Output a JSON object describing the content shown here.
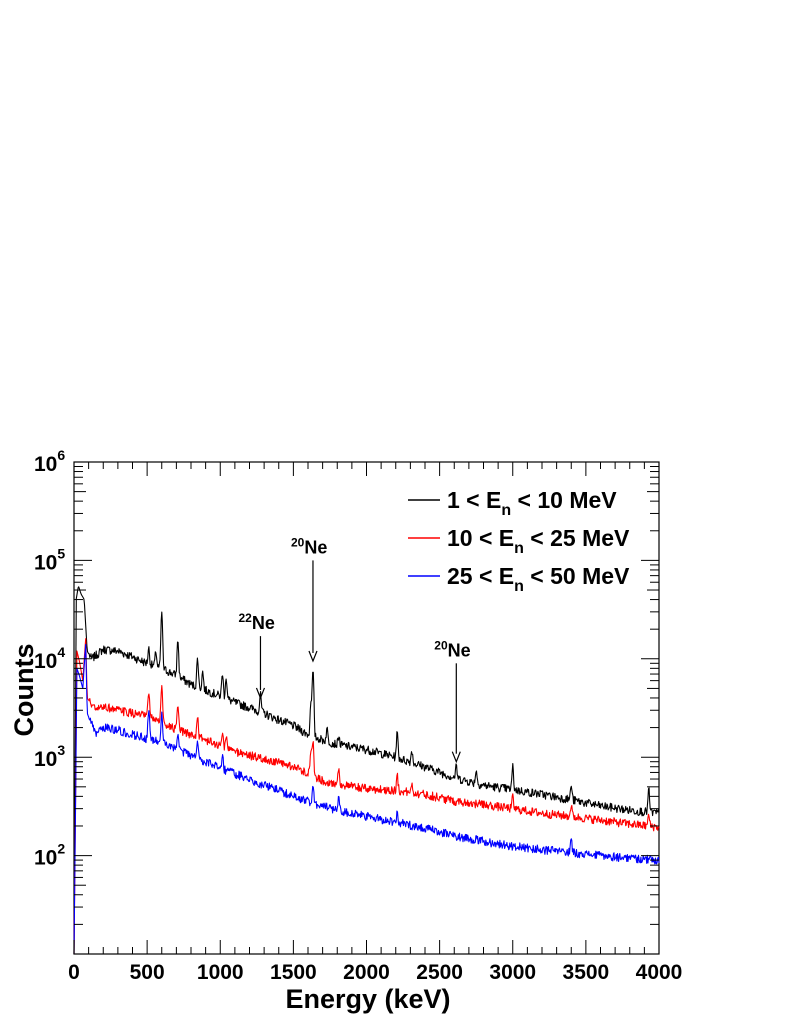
{
  "chart_data": {
    "type": "line",
    "xlabel": "Energy (keV)",
    "ylabel": "Counts",
    "xlim": [
      0,
      4000
    ],
    "ylim": [
      10,
      1000000
    ],
    "yscale": "log",
    "grid": false,
    "legend_position": "top-right",
    "x_ticks": [
      "0",
      "500",
      "1000",
      "1500",
      "2000",
      "2500",
      "3000",
      "3500",
      "4000"
    ],
    "y_ticks": [
      {
        "base": "10",
        "exp": "2",
        "value": 100
      },
      {
        "base": "10",
        "exp": "3",
        "value": 1000
      },
      {
        "base": "10",
        "exp": "4",
        "value": 10000
      },
      {
        "base": "10",
        "exp": "5",
        "value": 100000
      },
      {
        "base": "10",
        "exp": "6",
        "value": 1000000
      }
    ],
    "series": [
      {
        "label_parts": [
          "1 < E",
          "n",
          " < 10 MeV"
        ],
        "color": "#000000",
        "continuum": [
          [
            0,
            10
          ],
          [
            15,
            40000
          ],
          [
            30,
            55000
          ],
          [
            50,
            45000
          ],
          [
            70,
            40000
          ],
          [
            90,
            12000
          ],
          [
            120,
            10000
          ],
          [
            200,
            12500
          ],
          [
            300,
            12000
          ],
          [
            400,
            10500
          ],
          [
            500,
            9000
          ],
          [
            600,
            8000
          ],
          [
            700,
            6800
          ],
          [
            800,
            5500
          ],
          [
            900,
            4800
          ],
          [
            1000,
            4200
          ],
          [
            1100,
            3600
          ],
          [
            1200,
            3200
          ],
          [
            1300,
            2800
          ],
          [
            1400,
            2400
          ],
          [
            1500,
            2100
          ],
          [
            1600,
            1700
          ],
          [
            1700,
            1500
          ],
          [
            1800,
            1350
          ],
          [
            2000,
            1200
          ],
          [
            2200,
            1000
          ],
          [
            2400,
            800
          ],
          [
            2600,
            620
          ],
          [
            2800,
            520
          ],
          [
            3000,
            470
          ],
          [
            3200,
            420
          ],
          [
            3400,
            370
          ],
          [
            3600,
            320
          ],
          [
            3800,
            290
          ],
          [
            4000,
            270
          ]
        ],
        "peaks": [
          [
            511,
            4000
          ],
          [
            560,
            3500
          ],
          [
            600,
            22000
          ],
          [
            710,
            9000
          ],
          [
            845,
            5000
          ],
          [
            880,
            2500
          ],
          [
            1015,
            3000
          ],
          [
            1040,
            2500
          ],
          [
            1275,
            1500
          ],
          [
            1620,
            2000
          ],
          [
            1634,
            6000
          ],
          [
            1730,
            500
          ],
          [
            1810,
            300
          ],
          [
            2210,
            800
          ],
          [
            2310,
            300
          ],
          [
            2614,
            200
          ],
          [
            2750,
            200
          ],
          [
            3000,
            350
          ],
          [
            3400,
            150
          ],
          [
            3930,
            200
          ]
        ]
      },
      {
        "label_parts": [
          "10 < E",
          "n",
          " < 25 MeV"
        ],
        "color": "#ff0000",
        "continuum": [
          [
            0,
            10
          ],
          [
            20,
            12000
          ],
          [
            40,
            9000
          ],
          [
            60,
            6000
          ],
          [
            80,
            16000
          ],
          [
            90,
            4000
          ],
          [
            150,
            3000
          ],
          [
            200,
            3300
          ],
          [
            300,
            3000
          ],
          [
            400,
            2800
          ],
          [
            500,
            2600
          ],
          [
            600,
            2300
          ],
          [
            700,
            1900
          ],
          [
            800,
            1700
          ],
          [
            900,
            1500
          ],
          [
            1000,
            1300
          ],
          [
            1100,
            1150
          ],
          [
            1200,
            1050
          ],
          [
            1300,
            950
          ],
          [
            1400,
            880
          ],
          [
            1500,
            800
          ],
          [
            1600,
            700
          ],
          [
            1700,
            580
          ],
          [
            1800,
            530
          ],
          [
            2000,
            480
          ],
          [
            2200,
            460
          ],
          [
            2400,
            420
          ],
          [
            2600,
            360
          ],
          [
            2800,
            330
          ],
          [
            3000,
            300
          ],
          [
            3200,
            270
          ],
          [
            3400,
            250
          ],
          [
            3600,
            230
          ],
          [
            3800,
            210
          ],
          [
            4000,
            195
          ]
        ],
        "peaks": [
          [
            511,
            2000
          ],
          [
            600,
            3000
          ],
          [
            710,
            1500
          ],
          [
            845,
            1000
          ],
          [
            1015,
            500
          ],
          [
            1040,
            400
          ],
          [
            1620,
            500
          ],
          [
            1634,
            800
          ],
          [
            1810,
            250
          ],
          [
            2210,
            200
          ],
          [
            2310,
            100
          ],
          [
            3000,
            100
          ],
          [
            3400,
            80
          ],
          [
            3930,
            60
          ]
        ]
      },
      {
        "label_parts": [
          "25 < E",
          "n",
          " < 50 MeV"
        ],
        "color": "#0000ff",
        "continuum": [
          [
            0,
            10
          ],
          [
            20,
            8000
          ],
          [
            40,
            6500
          ],
          [
            60,
            5000
          ],
          [
            80,
            14000
          ],
          [
            90,
            2800
          ],
          [
            150,
            1700
          ],
          [
            200,
            2000
          ],
          [
            300,
            1900
          ],
          [
            400,
            1700
          ],
          [
            500,
            1550
          ],
          [
            600,
            1400
          ],
          [
            700,
            1200
          ],
          [
            800,
            1050
          ],
          [
            900,
            900
          ],
          [
            1000,
            780
          ],
          [
            1100,
            680
          ],
          [
            1200,
            600
          ],
          [
            1300,
            520
          ],
          [
            1400,
            460
          ],
          [
            1500,
            400
          ],
          [
            1600,
            360
          ],
          [
            1700,
            320
          ],
          [
            1800,
            290
          ],
          [
            2000,
            250
          ],
          [
            2200,
            220
          ],
          [
            2400,
            190
          ],
          [
            2600,
            160
          ],
          [
            2800,
            140
          ],
          [
            3000,
            125
          ],
          [
            3200,
            115
          ],
          [
            3400,
            108
          ],
          [
            3600,
            100
          ],
          [
            3800,
            95
          ],
          [
            4000,
            90
          ]
        ],
        "peaks": [
          [
            511,
            1500
          ],
          [
            600,
            1500
          ],
          [
            710,
            500
          ],
          [
            845,
            400
          ],
          [
            1015,
            300
          ],
          [
            1634,
            200
          ],
          [
            1810,
            120
          ],
          [
            2210,
            50
          ],
          [
            3400,
            40
          ]
        ]
      }
    ],
    "annotations": [
      {
        "mass": "22",
        "symbol": "Ne",
        "x": 1275,
        "arrow_from_y": 17000,
        "arrow_to_y": 4000
      },
      {
        "mass": "20",
        "symbol": "Ne",
        "x": 1634,
        "arrow_from_y": 100000,
        "arrow_to_y": 9500
      },
      {
        "mass": "20",
        "symbol": "Ne",
        "x": 2614,
        "arrow_from_y": 9000,
        "arrow_to_y": 900
      }
    ]
  }
}
